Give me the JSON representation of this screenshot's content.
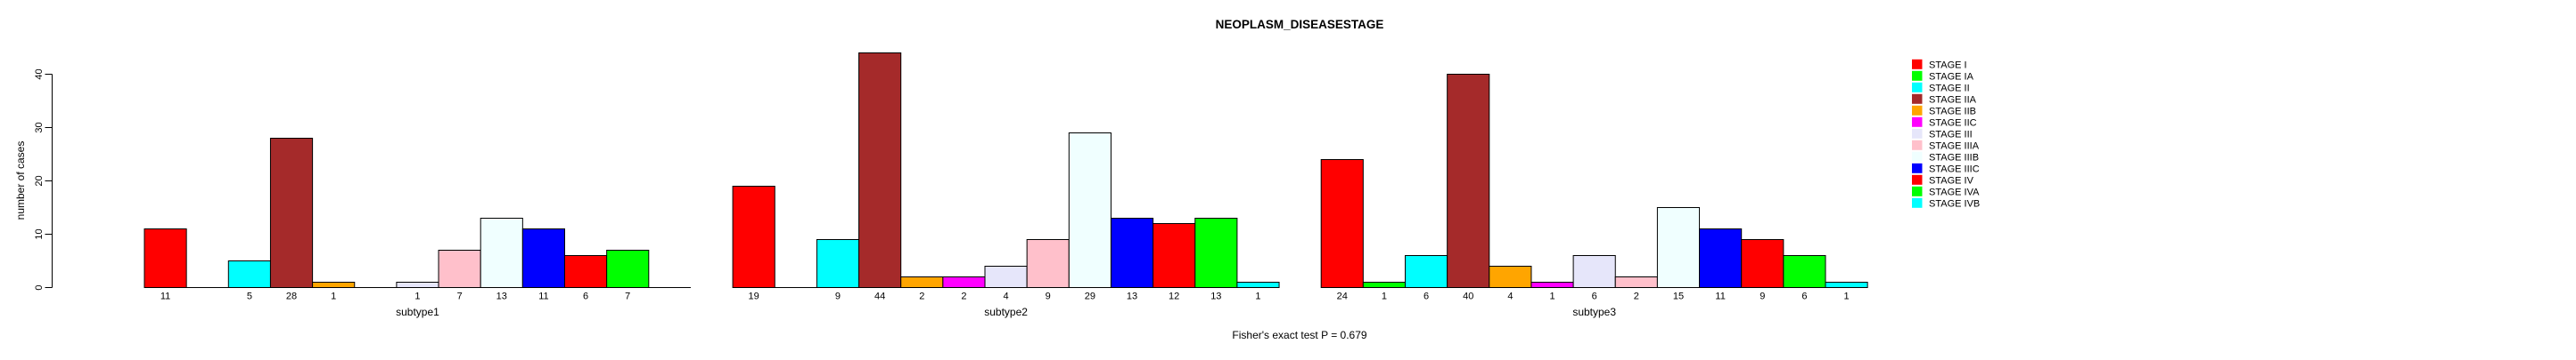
{
  "title": "NEOPLASM_DISEASESTAGE",
  "footer": "Fisher's exact test P = 0.679",
  "y_axis": {
    "label": "number of cases",
    "ticks": [
      0,
      10,
      20,
      30,
      40
    ]
  },
  "legend": {
    "entries": [
      {
        "label": "STAGE I",
        "color": "#FF0000"
      },
      {
        "label": "STAGE IA",
        "color": "#00FF00"
      },
      {
        "label": "STAGE II",
        "color": "#00FFFF"
      },
      {
        "label": "STAGE IIA",
        "color": "#A52A2A"
      },
      {
        "label": "STAGE IIB",
        "color": "#FFA500"
      },
      {
        "label": "STAGE IIC",
        "color": "#FF00FF"
      },
      {
        "label": "STAGE III",
        "color": "#E6E6FA"
      },
      {
        "label": "STAGE IIIA",
        "color": "#FFC0CB"
      },
      {
        "label": "STAGE IIIB",
        "color": "#F0FFFF"
      },
      {
        "label": "STAGE IIIC",
        "color": "#0000FF"
      },
      {
        "label": "STAGE IV",
        "color": "#FF0000"
      },
      {
        "label": "STAGE IVA",
        "color": "#00FF00"
      },
      {
        "label": "STAGE IVB",
        "color": "#00FFFF"
      }
    ]
  },
  "chart_data": {
    "type": "bar",
    "title": "NEOPLASM_DISEASESTAGE",
    "xlabel": "",
    "ylabel": "number of cases",
    "ylim": [
      0,
      44
    ],
    "yticks": [
      0,
      10,
      20,
      30,
      40
    ],
    "grid": false,
    "legend_position": "right",
    "annotation": "Fisher's exact test P = 0.679",
    "categories": [
      "STAGE I",
      "STAGE IA",
      "STAGE II",
      "STAGE IIA",
      "STAGE IIB",
      "STAGE IIC",
      "STAGE III",
      "STAGE IIIA",
      "STAGE IIIB",
      "STAGE IIIC",
      "STAGE IV",
      "STAGE IVA",
      "STAGE IVB"
    ],
    "colors": [
      "#FF0000",
      "#00FF00",
      "#00FFFF",
      "#A52A2A",
      "#FFA500",
      "#FF00FF",
      "#E6E6FA",
      "#FFC0CB",
      "#F0FFFF",
      "#0000FF",
      "#FF0000",
      "#00FF00",
      "#00FFFF"
    ],
    "series": [
      {
        "name": "subtype1",
        "values": [
          11,
          0,
          5,
          28,
          1,
          0,
          1,
          7,
          13,
          11,
          6,
          7,
          0
        ]
      },
      {
        "name": "subtype2",
        "values": [
          19,
          0,
          9,
          44,
          2,
          2,
          4,
          9,
          29,
          13,
          12,
          13,
          1
        ]
      },
      {
        "name": "subtype3",
        "values": [
          24,
          1,
          6,
          40,
          4,
          1,
          6,
          2,
          15,
          11,
          9,
          6,
          1
        ]
      }
    ],
    "bar_value_labels_shown": true,
    "zero_value_labels_hidden": true
  }
}
